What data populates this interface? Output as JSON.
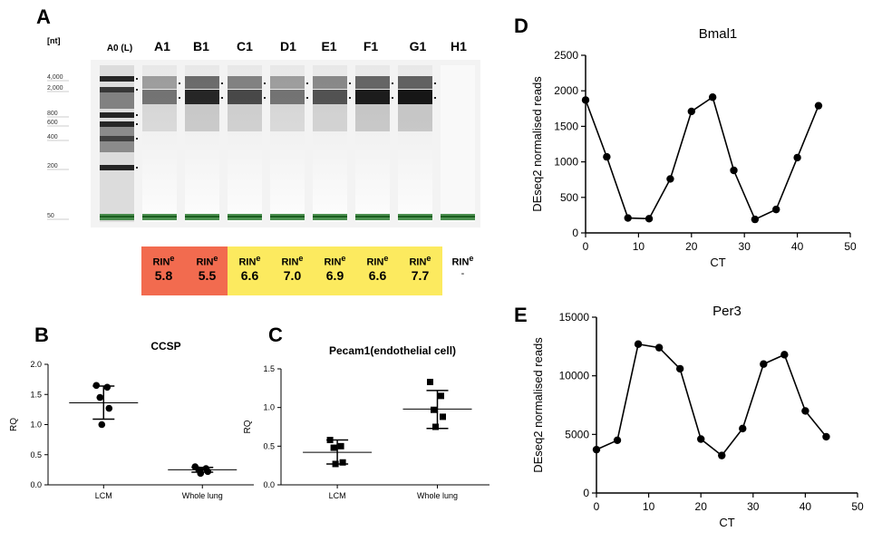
{
  "colors": {
    "rin_low": "#f26b4f",
    "rin_mid": "#fcea5f",
    "lower_marker": "#2e7d32"
  },
  "panels": {
    "A": {
      "label": "A",
      "unit_label": "[nt]",
      "lanes": [
        "A0 (L)",
        "A1",
        "B1",
        "C1",
        "D1",
        "E1",
        "F1",
        "G1",
        "H1"
      ],
      "ladder_sizes": [
        "4,000",
        "2,000",
        "800",
        "600",
        "400",
        "200",
        "50"
      ],
      "rin_prefix": "RIN",
      "rin_superscript": "e",
      "rin": [
        {
          "lane": "A1",
          "value": "5.8",
          "color": "#f26b4f"
        },
        {
          "lane": "B1",
          "value": "5.5",
          "color": "#f26b4f"
        },
        {
          "lane": "C1",
          "value": "6.6",
          "color": "#fcea5f"
        },
        {
          "lane": "D1",
          "value": "7.0",
          "color": "#fcea5f"
        },
        {
          "lane": "E1",
          "value": "6.9",
          "color": "#fcea5f"
        },
        {
          "lane": "F1",
          "value": "6.6",
          "color": "#fcea5f"
        },
        {
          "lane": "G1",
          "value": "7.7",
          "color": "#fcea5f"
        },
        {
          "lane": "H1",
          "value": "-",
          "color": ""
        }
      ]
    },
    "B": {
      "label": "B"
    },
    "C": {
      "label": "C"
    },
    "D": {
      "label": "D"
    },
    "E": {
      "label": "E"
    }
  },
  "chart_data": [
    {
      "panel": "B",
      "type": "scatter",
      "title": "CCSP",
      "xlabel": "",
      "ylabel": "RQ",
      "categories": [
        "LCM",
        "Whole lung"
      ],
      "ylim": [
        0,
        2.0
      ],
      "yticks": [
        "0.0",
        "0.5",
        "1.0",
        "1.5",
        "2.0"
      ],
      "marker": "circle",
      "groups": [
        {
          "category": "LCM",
          "points": [
            1.65,
            1.62,
            1.45,
            1.27,
            1.0
          ],
          "mean": 1.36,
          "sd_low": 1.09,
          "sd_high": 1.64
        },
        {
          "category": "Whole lung",
          "points": [
            0.3,
            0.27,
            0.25,
            0.22,
            0.19
          ],
          "mean": 0.25,
          "sd_low": 0.21,
          "sd_high": 0.29
        }
      ]
    },
    {
      "panel": "C",
      "type": "scatter",
      "title": "Pecam1(endothelial cell)",
      "xlabel": "",
      "ylabel": "RQ",
      "categories": [
        "LCM",
        "Whole lung"
      ],
      "ylim": [
        0,
        1.5
      ],
      "yticks": [
        "0.0",
        "0.5",
        "1.0",
        "1.5"
      ],
      "marker": "square",
      "groups": [
        {
          "category": "LCM",
          "points": [
            0.58,
            0.5,
            0.48,
            0.29,
            0.27
          ],
          "mean": 0.42,
          "sd_low": 0.27,
          "sd_high": 0.58
        },
        {
          "category": "Whole lung",
          "points": [
            1.33,
            1.15,
            0.97,
            0.88,
            0.75
          ],
          "mean": 0.98,
          "sd_low": 0.73,
          "sd_high": 1.22
        }
      ]
    },
    {
      "panel": "D",
      "type": "line",
      "title": "Bmal1",
      "xlabel": "CT",
      "ylabel": "DEseq2 normalised reads",
      "xlim": [
        0,
        50
      ],
      "ylim": [
        0,
        2500
      ],
      "xticks": [
        "0",
        "10",
        "20",
        "30",
        "40",
        "50"
      ],
      "yticks": [
        "0",
        "500",
        "1000",
        "1500",
        "2000",
        "2500"
      ],
      "x": [
        0,
        4,
        8,
        12,
        16,
        20,
        24,
        28,
        32,
        36,
        40,
        44
      ],
      "y": [
        1870,
        1070,
        210,
        200,
        760,
        1710,
        1910,
        880,
        190,
        330,
        1060,
        1790
      ]
    },
    {
      "panel": "E",
      "type": "line",
      "title": "Per3",
      "xlabel": "CT",
      "ylabel": "DEseq2 normalised reads",
      "xlim": [
        0,
        50
      ],
      "ylim": [
        0,
        15000
      ],
      "xticks": [
        "0",
        "10",
        "20",
        "30",
        "40",
        "50"
      ],
      "yticks": [
        "0",
        "5000",
        "10000",
        "15000"
      ],
      "x": [
        0,
        4,
        8,
        12,
        16,
        20,
        24,
        28,
        32,
        36,
        40,
        44
      ],
      "y": [
        3700,
        4500,
        12700,
        12400,
        10600,
        4600,
        3200,
        5500,
        11000,
        11800,
        7000,
        4800
      ]
    }
  ]
}
